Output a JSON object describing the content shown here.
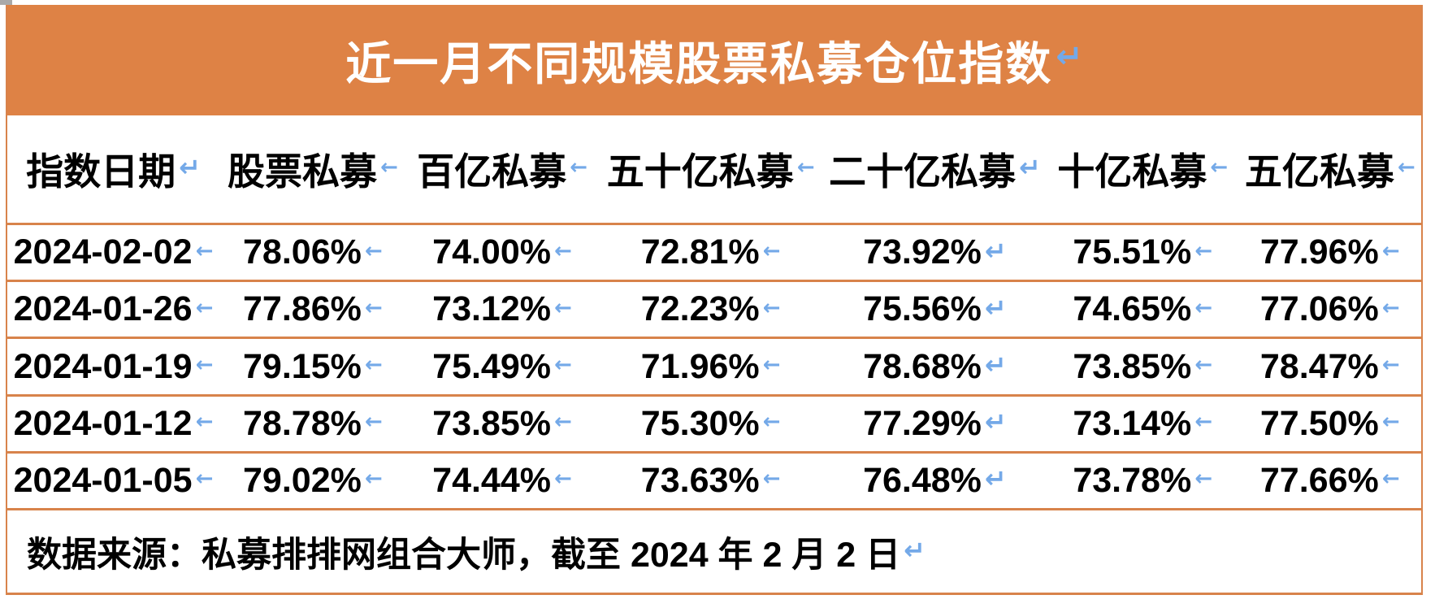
{
  "colors": {
    "banner_orange": "#de8245",
    "border_orange": "#d8834b",
    "mark_blue": "#74a9e8",
    "handle_gray": "#a9a9a9"
  },
  "title": {
    "text": "近一月不同规模股票私募仓位指数",
    "mark": "↵"
  },
  "table": {
    "headers": [
      {
        "label": "指数日期",
        "mark": "↵"
      },
      {
        "label": "股票私募",
        "mark": "←"
      },
      {
        "label": "百亿私募",
        "mark": "←"
      },
      {
        "label": "五十亿私募",
        "mark": "←"
      },
      {
        "label": "二十亿私募",
        "mark": "↵"
      },
      {
        "label": "十亿私募",
        "mark": "←"
      },
      {
        "label": "五亿私募",
        "mark": "←"
      }
    ],
    "cell_marks": [
      "←",
      "←",
      "←",
      "←",
      "↵",
      "←",
      "←"
    ],
    "rows": [
      {
        "date": "2024-02-02",
        "values": [
          "78.06%",
          "74.00%",
          "72.81%",
          "73.92%",
          "75.51%",
          "77.96%"
        ]
      },
      {
        "date": "2024-01-26",
        "values": [
          "77.86%",
          "73.12%",
          "72.23%",
          "75.56%",
          "74.65%",
          "77.06%"
        ]
      },
      {
        "date": "2024-01-19",
        "values": [
          "79.15%",
          "75.49%",
          "71.96%",
          "78.68%",
          "73.85%",
          "78.47%"
        ]
      },
      {
        "date": "2024-01-12",
        "values": [
          "78.78%",
          "73.85%",
          "75.30%",
          "77.29%",
          "73.14%",
          "77.50%"
        ]
      },
      {
        "date": "2024-01-05",
        "values": [
          "79.02%",
          "74.44%",
          "73.63%",
          "76.48%",
          "73.78%",
          "77.66%"
        ]
      }
    ]
  },
  "footer": {
    "text": "数据来源：私募排排网组合大师，截至 2024 年 2 月 2 日",
    "mark": "↵"
  }
}
